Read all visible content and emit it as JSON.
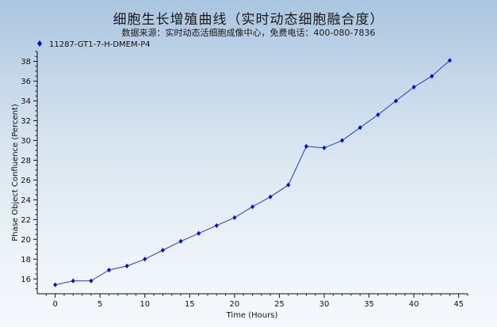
{
  "title": "细胞生长增殖曲线（实时动态细胞融合度）",
  "subtitle": "数据来源：实时动态活细胞成像中心，免费电话：400-080-7836",
  "colors": {
    "series": "#0000ff",
    "line": "#1f3fbf"
  },
  "chart_data": {
    "type": "line",
    "xlabel": "Time (Hours)",
    "ylabel": "Phase Object Confluence (Percent)",
    "xlim": [
      -2,
      46
    ],
    "ylim": [
      14.5,
      39
    ],
    "xticks": [
      0,
      5,
      10,
      15,
      20,
      25,
      30,
      35,
      40,
      45
    ],
    "yticks": [
      16,
      18,
      20,
      22,
      24,
      26,
      28,
      30,
      32,
      34,
      36,
      38
    ],
    "legend_position": "top-left",
    "grid": false,
    "series": [
      {
        "name": "11287-GT1-7-H-DMEM-P4",
        "marker": "diamond",
        "x": [
          0,
          2,
          4,
          6,
          8,
          10,
          12,
          14,
          16,
          18,
          20,
          22,
          24,
          26,
          28,
          30,
          32,
          34,
          36,
          38,
          40,
          42,
          44
        ],
        "y": [
          15.4,
          15.8,
          15.8,
          16.9,
          17.3,
          18.0,
          18.9,
          19.8,
          20.6,
          21.4,
          22.2,
          23.3,
          24.3,
          25.5,
          29.4,
          29.25,
          30.0,
          31.3,
          32.6,
          34.0,
          35.4,
          36.5,
          38.1
        ]
      }
    ]
  }
}
